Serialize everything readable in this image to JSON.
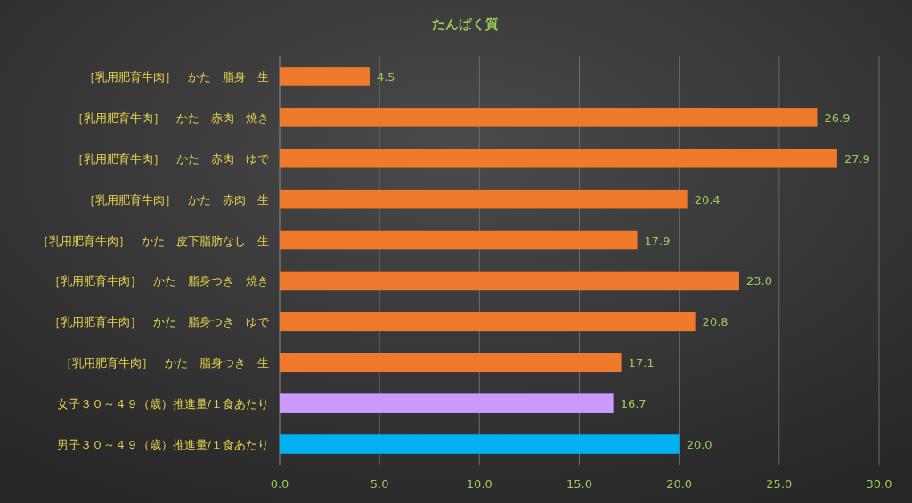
{
  "chart_data": {
    "type": "bar",
    "orientation": "horizontal",
    "title": "たんぱく質",
    "categories": [
      "［乳用肥育牛肉］　かた　脂身　生",
      "［乳用肥育牛肉］　かた　赤肉　焼き",
      "［乳用肥育牛肉］　かた　赤肉　ゆで",
      "［乳用肥育牛肉］　かた　赤肉　生",
      "［乳用肥育牛肉］　かた　皮下脂肪なし　生",
      "［乳用肥育牛肉］　かた　脂身つき　焼き",
      "［乳用肥育牛肉］　かた　脂身つき　ゆで",
      "［乳用肥育牛肉］　かた　脂身つき　生",
      "女子３０～４９（歳）推進量/１食あたり",
      "男子３０～４９（歳）推進量/１食あたり"
    ],
    "values": [
      4.5,
      26.9,
      27.9,
      20.4,
      17.9,
      23.0,
      20.8,
      17.1,
      16.7,
      20.0
    ],
    "value_labels": [
      "4.5",
      "26.9",
      "27.9",
      "20.4",
      "17.9",
      "23.0",
      "20.8",
      "17.1",
      "16.7",
      "20.0"
    ],
    "colors": [
      "#f07a2c",
      "#f07a2c",
      "#f07a2c",
      "#f07a2c",
      "#f07a2c",
      "#f07a2c",
      "#f07a2c",
      "#f07a2c",
      "#cc99ff",
      "#00b0f0"
    ],
    "xlim": [
      0,
      30
    ],
    "xticks": [
      {
        "value": 0,
        "label": "0.0"
      },
      {
        "value": 5,
        "label": "5.0"
      },
      {
        "value": 10,
        "label": "10.0"
      },
      {
        "value": 15,
        "label": "15.0"
      },
      {
        "value": 20,
        "label": "20.0"
      },
      {
        "value": 25,
        "label": "25.0"
      },
      {
        "value": 30,
        "label": "30.0"
      }
    ],
    "grid": "x"
  }
}
